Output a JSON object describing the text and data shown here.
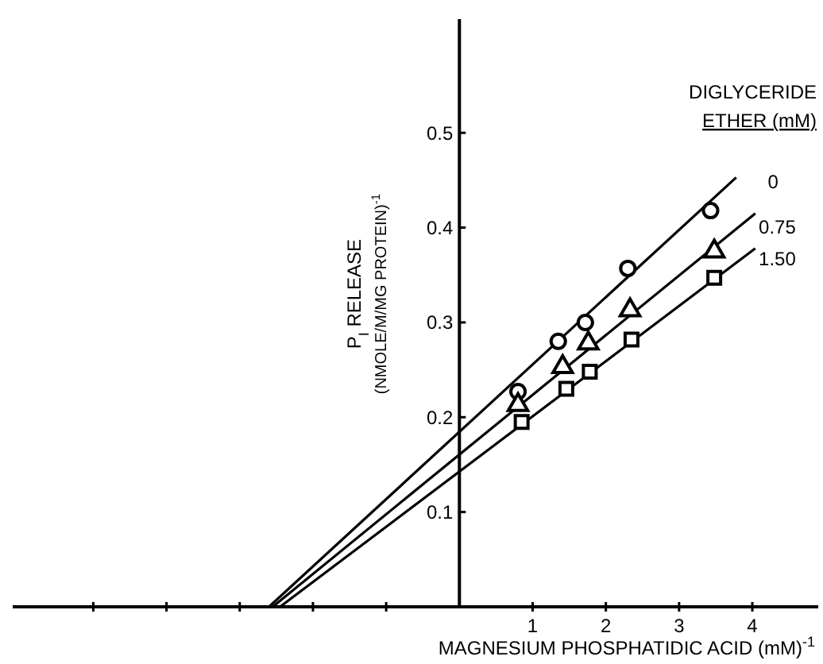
{
  "chart_data": {
    "type": "scatter",
    "xlabel": "MAGNESIUM PHOSPHATIDIC ACID (mM)$^{-1}$",
    "ylabel": "P$_{I}$ RELEASE\n(NMOLE/M/MG PROTEIN)$^{-1}$",
    "legend_title": "DIGLYCERIDE\nETHER (mM)",
    "xlim": [
      -6.1,
      4.9
    ],
    "ylim": [
      0,
      0.62
    ],
    "xticks": [
      {
        "value": -5,
        "label": null
      },
      {
        "value": -4,
        "label": null
      },
      {
        "value": -3,
        "label": null
      },
      {
        "value": -2,
        "label": null
      },
      {
        "value": -1,
        "label": null
      },
      1,
      2,
      3,
      4
    ],
    "yticks": [
      0.1,
      0.2,
      0.3,
      0.4,
      0.5
    ],
    "series": [
      {
        "name": "0",
        "color": "#000000",
        "marker": "circle",
        "x": [
          0.8,
          1.35,
          1.72,
          2.3,
          3.43
        ],
        "values": [
          0.227,
          0.28,
          0.3,
          0.357,
          0.418
        ]
      },
      {
        "name": "0.75",
        "color": "#000000",
        "marker": "triangle",
        "x": [
          0.8,
          1.41,
          1.76,
          2.33,
          3.48
        ],
        "values": [
          0.213,
          0.253,
          0.278,
          0.313,
          0.375
        ]
      },
      {
        "name": "1.50",
        "color": "#000000",
        "marker": "square",
        "x": [
          0.85,
          1.46,
          1.78,
          2.35,
          3.48
        ],
        "values": [
          0.195,
          0.23,
          0.248,
          0.282,
          0.347
        ]
      },
      {
        "type": "line",
        "color": "#000000",
        "x": [
          -2.6,
          3.78
        ],
        "values": [
          0,
          0.453
        ]
      },
      {
        "type": "line",
        "color": "#000000",
        "x": [
          -2.55,
          4.04
        ],
        "values": [
          0,
          0.415
        ]
      },
      {
        "type": "line",
        "color": "#000000",
        "x": [
          -2.45,
          4.04
        ],
        "values": [
          0,
          0.378
        ]
      }
    ]
  }
}
